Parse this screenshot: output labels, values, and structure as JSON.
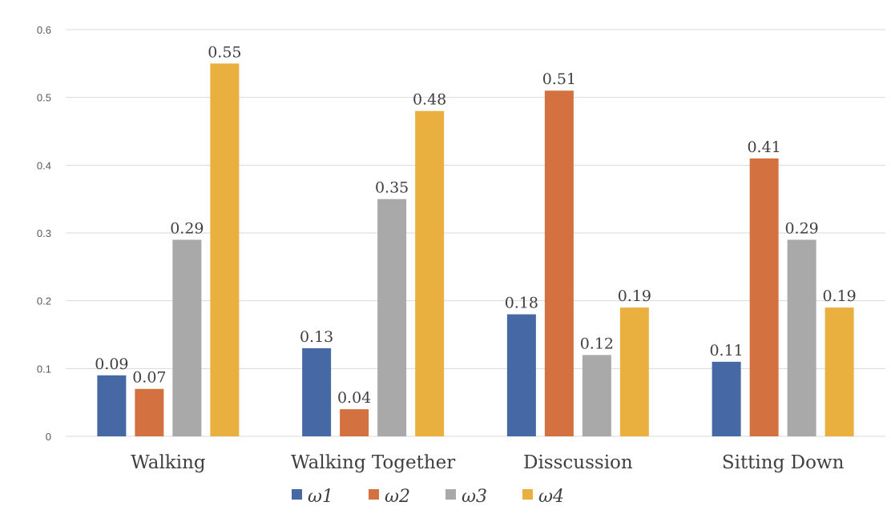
{
  "chart_data": {
    "type": "bar",
    "categories": [
      "Walking",
      "Walking Together",
      "Disscussion",
      "Sitting Down"
    ],
    "series": [
      {
        "name": "ω1",
        "color": "#4668a5",
        "values": [
          0.09,
          0.13,
          0.18,
          0.11
        ]
      },
      {
        "name": "ω2",
        "color": "#d37140",
        "values": [
          0.07,
          0.04,
          0.51,
          0.41
        ]
      },
      {
        "name": "ω3",
        "color": "#a9a9a9",
        "values": [
          0.29,
          0.35,
          0.12,
          0.29
        ]
      },
      {
        "name": "ω4",
        "color": "#e9b03f",
        "values": [
          0.55,
          0.48,
          0.19,
          0.19
        ]
      }
    ],
    "ylim": [
      0,
      0.6
    ],
    "yticks": [
      "0",
      "0.1",
      "0.2",
      "0.3",
      "0.4",
      "0.5",
      "0.6"
    ],
    "grid": true,
    "legend_position": "bottom",
    "data_labels": true
  }
}
